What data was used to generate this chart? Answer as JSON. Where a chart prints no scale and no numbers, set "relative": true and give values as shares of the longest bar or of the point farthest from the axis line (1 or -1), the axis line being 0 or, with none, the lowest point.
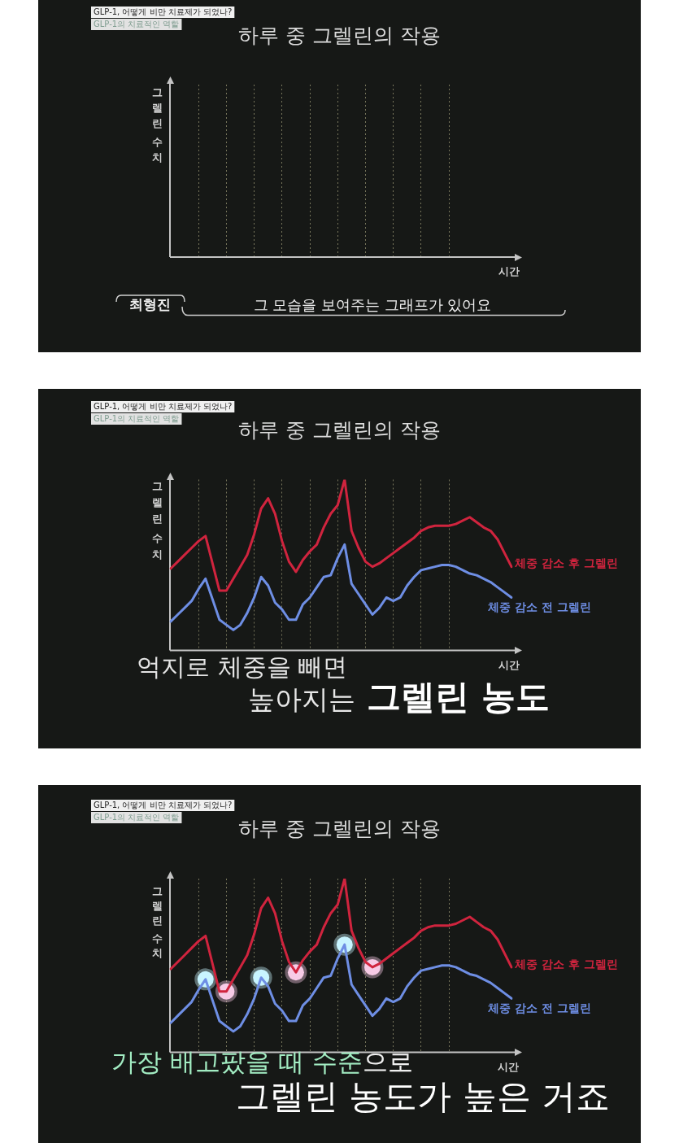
{
  "chart_data": [
    {
      "type": "other",
      "title": "하루 중 그렐린의 작용",
      "xlabel": "시간",
      "ylabel": "그렐린 수치",
      "categories": [
        null,
        null,
        null,
        null,
        null,
        null,
        null,
        null,
        null,
        null,
        null,
        null,
        null,
        null,
        null,
        null,
        null,
        null,
        null,
        null,
        null,
        null,
        null,
        null,
        null,
        null,
        null,
        null,
        null,
        null,
        null,
        null,
        null,
        null,
        null,
        null,
        null,
        null,
        null,
        null,
        null,
        null,
        null,
        null,
        null,
        null,
        null,
        null,
        null,
        null
      ],
      "annotations": [
        "GLP-1, 어떻게 비만 치료제가 되었나?",
        "GLP-1의 치료적인 역할",
        "최형진",
        "그 모습을 보여주는 그래프가 있어요"
      ]
    },
    {
      "type": "line",
      "title": "하루 중 그렐린의 작용",
      "xlabel": "시간",
      "ylabel": "그렐린 수치",
      "relative": true,
      "grid": "x",
      "tick_labels": false,
      "categories": [
        null,
        null,
        null,
        null,
        null,
        null,
        null,
        null,
        null,
        null,
        null,
        null,
        null,
        null,
        null,
        null,
        null,
        null,
        null,
        null,
        null,
        null,
        null,
        null,
        null,
        null,
        null,
        null,
        null,
        null,
        null,
        null,
        null,
        null,
        null,
        null,
        null,
        null,
        null,
        null,
        null,
        null,
        null,
        null,
        null,
        null,
        null,
        null,
        null,
        null
      ],
      "series": [
        {
          "name": "체중 감소 후 그렐린",
          "color": "#d0243e",
          "values": [
            0.48,
            0.52,
            0.56,
            0.6,
            0.64,
            0.67,
            0.51,
            0.35,
            0.35,
            0.42,
            0.49,
            0.56,
            0.68,
            0.83,
            0.89,
            0.8,
            0.64,
            0.52,
            0.46,
            0.53,
            0.58,
            0.62,
            0.72,
            0.8,
            0.85,
            1,
            0.7,
            0.6,
            0.52,
            0.49,
            0.51,
            0.54,
            0.57,
            0.6,
            0.63,
            0.66,
            0.7,
            0.72,
            0.73,
            0.73,
            0.73,
            0.74,
            0.76,
            0.78,
            0.75,
            0.72,
            0.7,
            0.65,
            0.57,
            0.49
          ]
        },
        {
          "name": "체중 감소 전 그렐린",
          "color": "#6e8ee4",
          "values": [
            0.17,
            0.21,
            0.25,
            0.29,
            0.36,
            0.42,
            0.3,
            0.18,
            0.15,
            0.12,
            0.15,
            0.22,
            0.31,
            0.43,
            0.38,
            0.28,
            0.24,
            0.18,
            0.18,
            0.27,
            0.31,
            0.37,
            0.43,
            0.44,
            0.54,
            0.62,
            0.39,
            0.33,
            0.27,
            0.21,
            0.25,
            0.31,
            0.29,
            0.31,
            0.38,
            0.43,
            0.47,
            0.48,
            0.49,
            0.5,
            0.5,
            0.49,
            0.47,
            0.45,
            0.44,
            0.42,
            0.4,
            0.37,
            0.34,
            0.31
          ]
        }
      ],
      "annotations": [
        "GLP-1, 어떻게 비만 치료제가 되었나?",
        "GLP-1의 치료적인 역할",
        "억지로 체중을 빼면",
        "높아지는",
        "그렐린 농도"
      ]
    },
    {
      "type": "line",
      "title": "하루 중 그렐린의 작용",
      "xlabel": "시간",
      "ylabel": "그렐린 수치",
      "relative": true,
      "grid": "x",
      "tick_labels": false,
      "categories": [
        null,
        null,
        null,
        null,
        null,
        null,
        null,
        null,
        null,
        null,
        null,
        null,
        null,
        null,
        null,
        null,
        null,
        null,
        null,
        null,
        null,
        null,
        null,
        null,
        null,
        null,
        null,
        null,
        null,
        null,
        null,
        null,
        null,
        null,
        null,
        null,
        null,
        null,
        null,
        null,
        null,
        null,
        null,
        null,
        null,
        null,
        null,
        null,
        null,
        null
      ],
      "series": [
        {
          "name": "체중 감소 후 그렐린",
          "color": "#d0243e",
          "values": [
            0.48,
            0.52,
            0.56,
            0.6,
            0.64,
            0.67,
            0.51,
            0.35,
            0.35,
            0.42,
            0.49,
            0.56,
            0.68,
            0.83,
            0.89,
            0.8,
            0.64,
            0.52,
            0.46,
            0.53,
            0.58,
            0.62,
            0.72,
            0.8,
            0.85,
            1,
            0.7,
            0.6,
            0.52,
            0.49,
            0.51,
            0.54,
            0.57,
            0.6,
            0.63,
            0.66,
            0.7,
            0.72,
            0.73,
            0.73,
            0.73,
            0.74,
            0.76,
            0.78,
            0.75,
            0.72,
            0.7,
            0.65,
            0.57,
            0.49
          ]
        },
        {
          "name": "체중 감소 전 그렐린",
          "color": "#6e8ee4",
          "values": [
            0.17,
            0.21,
            0.25,
            0.29,
            0.36,
            0.42,
            0.3,
            0.18,
            0.15,
            0.12,
            0.15,
            0.22,
            0.31,
            0.43,
            0.38,
            0.28,
            0.24,
            0.18,
            0.18,
            0.27,
            0.31,
            0.37,
            0.43,
            0.44,
            0.54,
            0.62,
            0.39,
            0.33,
            0.27,
            0.21,
            0.25,
            0.31,
            0.29,
            0.31,
            0.38,
            0.43,
            0.47,
            0.48,
            0.49,
            0.5,
            0.5,
            0.49,
            0.47,
            0.45,
            0.44,
            0.42,
            0.4,
            0.37,
            0.34,
            0.31
          ]
        },
        {
          "type": "scatter",
          "color": "#c8f4ff",
          "values": [
            null,
            null,
            null,
            null,
            null,
            0.42,
            null,
            null,
            null,
            null,
            null,
            null,
            null,
            0.43,
            null,
            null,
            null,
            null,
            null,
            null,
            null,
            null,
            null,
            null,
            null,
            0.62,
            null,
            null,
            null,
            null,
            null,
            null,
            null,
            null,
            null,
            null,
            null,
            null,
            null,
            null,
            null,
            null,
            null,
            null,
            null,
            null,
            null,
            null,
            null,
            null
          ]
        },
        {
          "type": "scatter",
          "color": "#f7cbe6",
          "values": [
            null,
            null,
            null,
            null,
            null,
            null,
            null,
            null,
            0.35,
            null,
            null,
            null,
            null,
            null,
            null,
            null,
            null,
            null,
            0.46,
            null,
            null,
            null,
            null,
            null,
            null,
            null,
            null,
            null,
            null,
            0.49,
            null,
            null,
            null,
            null,
            null,
            null,
            null,
            null,
            null,
            null,
            null,
            null,
            null,
            null,
            null,
            null,
            null,
            null,
            null,
            null
          ]
        }
      ],
      "annotations": [
        "GLP-1, 어떻게 비만 치료제가 되었나?",
        "GLP-1의 치료적인 역할",
        "가장 배고팠을 때 수준",
        "으로",
        "그렐린 농도가 높은 거죠"
      ]
    }
  ]
}
